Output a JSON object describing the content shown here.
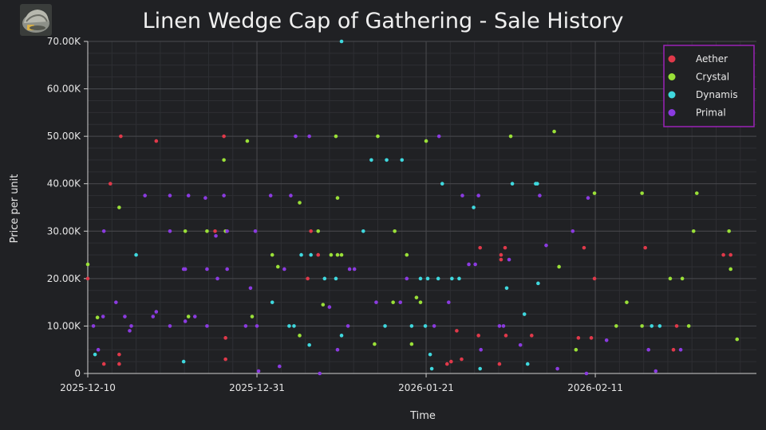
{
  "title": "Linen Wedge Cap of Gathering - Sale History",
  "icon_name": "cap-icon",
  "colors": {
    "background": "#202124",
    "grid_major": "#4a4b4f",
    "grid_minor": "#2e2f33",
    "legend_border": "#9b22b7",
    "Aether": "#e0394a",
    "Crystal": "#9ae038",
    "Dynamis": "#3fd8de",
    "Primal": "#8b3be0"
  },
  "chart_data": {
    "type": "scatter",
    "title": "Linen Wedge Cap of Gathering - Sale History",
    "xlabel": "Time",
    "ylabel": "Price per unit",
    "x_unit": "days since 2025-12-10",
    "xlim": [
      0,
      83
    ],
    "ylim": [
      0,
      70000
    ],
    "x_ticks": [
      {
        "value": 0,
        "label": "2025-12-10"
      },
      {
        "value": 21,
        "label": "2025-12-31"
      },
      {
        "value": 42,
        "label": "2026-01-21"
      },
      {
        "value": 63,
        "label": "2026-02-11"
      }
    ],
    "y_ticks": [
      {
        "value": 0,
        "label": "0"
      },
      {
        "value": 10000,
        "label": "10.00K"
      },
      {
        "value": 20000,
        "label": "20.00K"
      },
      {
        "value": 30000,
        "label": "30.00K"
      },
      {
        "value": 40000,
        "label": "40.00K"
      },
      {
        "value": 50000,
        "label": "50.00K"
      },
      {
        "value": 60000,
        "label": "60.00K"
      },
      {
        "value": 70000,
        "label": "70.00K"
      }
    ],
    "grid": true,
    "legend_position": "top-right",
    "series": [
      {
        "name": "Aether",
        "points": [
          [
            0.0,
            20000
          ],
          [
            2.0,
            2000
          ],
          [
            2.8,
            40000
          ],
          [
            3.9,
            2000
          ],
          [
            3.9,
            4000
          ],
          [
            4.1,
            50000
          ],
          [
            8.5,
            49000
          ],
          [
            15.8,
            30000
          ],
          [
            16.9,
            50000
          ],
          [
            17.1,
            7500
          ],
          [
            17.1,
            3000
          ],
          [
            27.3,
            20000
          ],
          [
            27.7,
            30000
          ],
          [
            28.6,
            25000
          ],
          [
            44.6,
            2000
          ],
          [
            45.1,
            2500
          ],
          [
            45.8,
            9000
          ],
          [
            46.4,
            3000
          ],
          [
            48.5,
            8000
          ],
          [
            48.7,
            26500
          ],
          [
            51.1,
            2000
          ],
          [
            51.3,
            25000
          ],
          [
            51.3,
            24000
          ],
          [
            51.8,
            26500
          ],
          [
            51.9,
            8000
          ],
          [
            55.1,
            8000
          ],
          [
            60.9,
            7500
          ],
          [
            61.6,
            26500
          ],
          [
            62.5,
            7500
          ],
          [
            62.9,
            20000
          ],
          [
            69.2,
            26500
          ],
          [
            72.7,
            5000
          ],
          [
            73.1,
            10000
          ],
          [
            78.9,
            25000
          ],
          [
            79.8,
            25000
          ]
        ]
      },
      {
        "name": "Crystal",
        "points": [
          [
            0.0,
            23000
          ],
          [
            1.2,
            11800
          ],
          [
            3.9,
            35000
          ],
          [
            12.1,
            30000
          ],
          [
            12.5,
            12000
          ],
          [
            14.8,
            30000
          ],
          [
            16.9,
            45000
          ],
          [
            17.1,
            30000
          ],
          [
            19.8,
            49000
          ],
          [
            20.4,
            12000
          ],
          [
            22.9,
            25000
          ],
          [
            23.6,
            22500
          ],
          [
            26.3,
            8000
          ],
          [
            26.3,
            36000
          ],
          [
            28.6,
            30000
          ],
          [
            29.2,
            14500
          ],
          [
            30.2,
            25000
          ],
          [
            30.8,
            50000
          ],
          [
            31.0,
            37000
          ],
          [
            31.0,
            25000
          ],
          [
            31.5,
            25000
          ],
          [
            35.6,
            6200
          ],
          [
            36.0,
            50000
          ],
          [
            37.9,
            15000
          ],
          [
            38.1,
            30000
          ],
          [
            39.6,
            25000
          ],
          [
            40.8,
            16000
          ],
          [
            40.2,
            6200
          ],
          [
            41.3,
            15000
          ],
          [
            42.0,
            49000
          ],
          [
            52.5,
            50000
          ],
          [
            57.9,
            51000
          ],
          [
            58.5,
            22500
          ],
          [
            60.6,
            5000
          ],
          [
            62.9,
            38000
          ],
          [
            65.6,
            10000
          ],
          [
            66.9,
            15000
          ],
          [
            68.8,
            10000
          ],
          [
            68.8,
            38000
          ],
          [
            72.3,
            20000
          ],
          [
            73.8,
            20000
          ],
          [
            74.6,
            10000
          ],
          [
            75.2,
            30000
          ],
          [
            75.6,
            38000
          ],
          [
            79.6,
            30000
          ],
          [
            79.8,
            22000
          ],
          [
            80.6,
            7200
          ]
        ]
      },
      {
        "name": "Dynamis",
        "points": [
          [
            0.9,
            4000
          ],
          [
            6.0,
            25000
          ],
          [
            11.9,
            2500
          ],
          [
            22.9,
            15000
          ],
          [
            25.0,
            10000
          ],
          [
            25.6,
            10000
          ],
          [
            26.5,
            25000
          ],
          [
            27.5,
            6000
          ],
          [
            27.7,
            25000
          ],
          [
            29.4,
            20000
          ],
          [
            30.8,
            20000
          ],
          [
            31.5,
            8000
          ],
          [
            31.5,
            70000
          ],
          [
            34.2,
            30000
          ],
          [
            35.2,
            45000
          ],
          [
            36.9,
            10000
          ],
          [
            37.1,
            45000
          ],
          [
            39.0,
            45000
          ],
          [
            40.2,
            10000
          ],
          [
            41.9,
            10000
          ],
          [
            41.3,
            20000
          ],
          [
            42.2,
            20000
          ],
          [
            42.5,
            4000
          ],
          [
            42.7,
            1000
          ],
          [
            43.5,
            20000
          ],
          [
            44.0,
            40000
          ],
          [
            45.2,
            20000
          ],
          [
            46.1,
            20000
          ],
          [
            47.9,
            35000
          ],
          [
            48.7,
            1000
          ],
          [
            52.0,
            18000
          ],
          [
            52.7,
            40000
          ],
          [
            54.2,
            12500
          ],
          [
            54.6,
            2000
          ],
          [
            55.6,
            40000
          ],
          [
            55.8,
            40000
          ],
          [
            55.9,
            19000
          ],
          [
            70.0,
            10000
          ],
          [
            71.0,
            10000
          ]
        ]
      },
      {
        "name": "Primal",
        "points": [
          [
            0.7,
            10000
          ],
          [
            1.3,
            5000
          ],
          [
            1.9,
            12000
          ],
          [
            2.0,
            30000
          ],
          [
            3.5,
            15000
          ],
          [
            4.6,
            12000
          ],
          [
            5.2,
            9000
          ],
          [
            5.4,
            10000
          ],
          [
            7.1,
            37500
          ],
          [
            8.1,
            12000
          ],
          [
            8.5,
            13000
          ],
          [
            10.2,
            10000
          ],
          [
            10.2,
            30000
          ],
          [
            10.2,
            37500
          ],
          [
            11.9,
            22000
          ],
          [
            12.1,
            22000
          ],
          [
            12.1,
            11000
          ],
          [
            12.5,
            37500
          ],
          [
            13.3,
            12000
          ],
          [
            14.6,
            37000
          ],
          [
            14.8,
            10000
          ],
          [
            14.8,
            22000
          ],
          [
            15.9,
            29000
          ],
          [
            16.1,
            20000
          ],
          [
            16.9,
            37500
          ],
          [
            17.3,
            22000
          ],
          [
            17.3,
            30000
          ],
          [
            19.6,
            10000
          ],
          [
            20.2,
            18000
          ],
          [
            20.8,
            30000
          ],
          [
            21.0,
            10000
          ],
          [
            21.2,
            500
          ],
          [
            22.7,
            37500
          ],
          [
            23.8,
            1500
          ],
          [
            24.4,
            22000
          ],
          [
            25.2,
            37500
          ],
          [
            25.8,
            50000
          ],
          [
            27.5,
            50000
          ],
          [
            28.8,
            0
          ],
          [
            30.0,
            14000
          ],
          [
            31.0,
            5000
          ],
          [
            32.3,
            10000
          ],
          [
            32.5,
            22000
          ],
          [
            33.1,
            22000
          ],
          [
            35.8,
            15000
          ],
          [
            38.8,
            15000
          ],
          [
            39.6,
            20000
          ],
          [
            43.0,
            10000
          ],
          [
            43.6,
            50000
          ],
          [
            44.8,
            15000
          ],
          [
            46.5,
            37500
          ],
          [
            47.3,
            23000
          ],
          [
            48.1,
            23000
          ],
          [
            48.5,
            37500
          ],
          [
            48.8,
            5000
          ],
          [
            51.1,
            10000
          ],
          [
            52.3,
            24000
          ],
          [
            56.1,
            37500
          ],
          [
            58.3,
            1000
          ],
          [
            60.2,
            30000
          ],
          [
            62.1,
            37000
          ],
          [
            61.9,
            0
          ],
          [
            64.4,
            7000
          ],
          [
            69.6,
            5000
          ],
          [
            70.5,
            500
          ],
          [
            73.6,
            5000
          ],
          [
            56.9,
            27000
          ],
          [
            51.6,
            10000
          ],
          [
            53.7,
            6000
          ]
        ]
      }
    ]
  }
}
